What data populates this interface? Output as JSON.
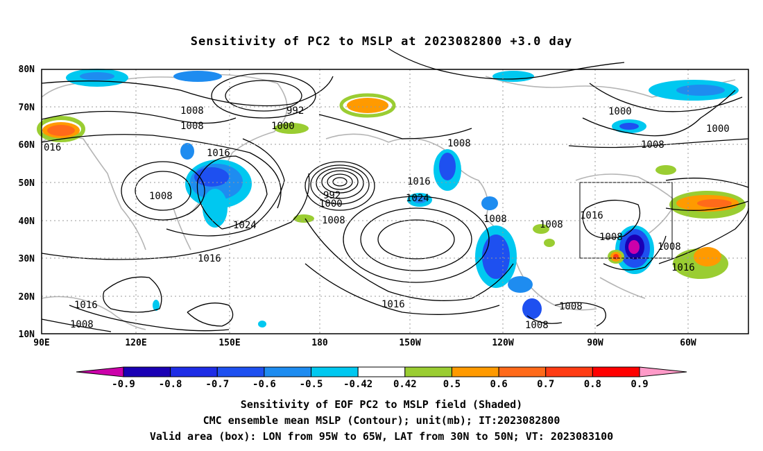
{
  "title": "Sensitivity of PC2 to MSLP at 2023082800 +3.0 day",
  "lat_labels": [
    "80N",
    "70N",
    "60N",
    "50N",
    "40N",
    "30N",
    "20N",
    "10N"
  ],
  "lon_labels": [
    "90E",
    "120E",
    "150E",
    "180",
    "150W",
    "120W",
    "90W",
    "60W"
  ],
  "contour_labels": [
    "1008",
    "992",
    "1008",
    "1000",
    "1000",
    "1000",
    "1008",
    "016",
    "1016",
    "1008",
    "1024",
    "1016",
    "992",
    "1016",
    "1000",
    "1024",
    "1008",
    "1016",
    "1008",
    "1008",
    "1008",
    "1016",
    "1008",
    "1008",
    "1016",
    "1016",
    "1008",
    "1008",
    "1008"
  ],
  "colorbar": {
    "labels": [
      "-0.9",
      "-0.8",
      "-0.7",
      "-0.6",
      "-0.5",
      "-0.42",
      "0.42",
      "0.5",
      "0.6",
      "0.7",
      "0.8",
      "0.9"
    ],
    "colors": [
      "#cc00aa",
      "#1a00b4",
      "#1e2de6",
      "#1e50f0",
      "#1e8cf0",
      "#00c8f0",
      "#ffffff",
      "#9acd32",
      "#ff9a00",
      "#ff6a1a",
      "#ff3c14",
      "#ff0000",
      "#ff9ac8"
    ]
  },
  "valid_box": {
    "lon_from": "95W",
    "lon_to": "65W",
    "lat_from": "30N",
    "lat_to": "50N"
  },
  "footer": {
    "line1": "Sensitivity of EOF PC2 to MSLP field (Shaded)",
    "line2": "CMC ensemble mean MSLP (Contour); unit(mb); IT:2023082800",
    "line3": "Valid area (box): LON from 95W to 65W, LAT from 30N to 50N; VT: 2023083100"
  }
}
